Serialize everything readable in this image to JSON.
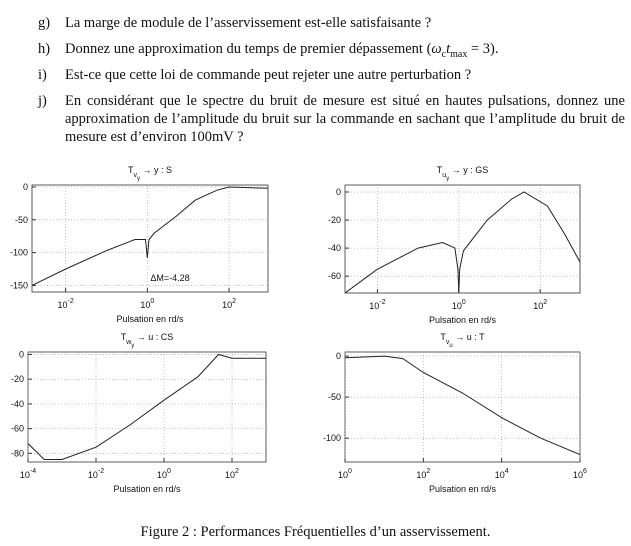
{
  "questions": [
    {
      "label": "g)",
      "text": "La marge de module de l’asservissement est-elle satisfaisante ?"
    },
    {
      "label": "h)",
      "text": "Donnez une approximation du temps de premier dépassement (",
      "omega": "ω",
      "omega_sub": "c",
      "t": "t",
      "t_sub": "max",
      "after": " = 3)."
    },
    {
      "label": "i)",
      "text": "Est-ce que cette loi de commande peut rejeter une autre perturbation ?"
    },
    {
      "label": "j)",
      "text": "En considérant que le spectre du bruit de mesure est situé en hautes pulsations, donnez une approximation de l’amplitude du bruit sur la commande en sachant que l’amplitude du bruit de mesure est d’environ 100mV ?"
    }
  ],
  "caption": "Figure 2 : Performances Fréquentielles d’un asservissement.",
  "chart_data": [
    {
      "type": "line",
      "title": {
        "base": "T",
        "sub": "v",
        "subsub": "y",
        "tail": " → y : S"
      },
      "x_label": "Pulsation en rd/s",
      "log_x": true,
      "grid": true,
      "color": "#222222",
      "x": [
        0.0015,
        0.01,
        0.1,
        0.5,
        0.9,
        1,
        1.1,
        1.5,
        5,
        15,
        50,
        100,
        900
      ],
      "values": [
        -150,
        -125,
        -97,
        -80,
        -80,
        -108,
        -80,
        -70,
        -45,
        -20,
        -5,
        0,
        -2
      ],
      "xlim": [
        0.0015,
        900
      ],
      "ylim": [
        -160,
        3
      ],
      "xticks": [
        {
          "value": 0.01,
          "label": "10",
          "exp": "-2"
        },
        {
          "value": 1,
          "label": "10",
          "exp": "0"
        },
        {
          "value": 100,
          "label": "10",
          "exp": "2"
        }
      ],
      "yticks": [
        0,
        -50,
        -100,
        -150
      ],
      "annotation": "ΔM=-4.28"
    },
    {
      "type": "line",
      "title": {
        "base": "T",
        "sub": "u",
        "subsub": "y",
        "tail": " → y : GS"
      },
      "x_label": "Pulsation en rd/s",
      "log_x": true,
      "grid": true,
      "color": "#222222",
      "x": [
        0.0016,
        0.01,
        0.1,
        0.4,
        0.8,
        0.95,
        1,
        1.05,
        1.3,
        5,
        20,
        40,
        150,
        400,
        950
      ],
      "values": [
        -72,
        -55,
        -40,
        -36,
        -40,
        -55,
        -72,
        -55,
        -42,
        -20,
        -5,
        0,
        -10,
        -30,
        -50
      ],
      "xlim": [
        0.0016,
        950
      ],
      "ylim": [
        -72,
        5
      ],
      "xticks": [
        {
          "value": 0.01,
          "label": "10",
          "exp": "-2"
        },
        {
          "value": 1,
          "label": "10",
          "exp": "0"
        },
        {
          "value": 100,
          "label": "10",
          "exp": "2"
        }
      ],
      "yticks": [
        0,
        -20,
        -40,
        -60
      ]
    },
    {
      "type": "line",
      "title": {
        "base": "T",
        "sub": "w",
        "subsub": "y",
        "tail": " → u : CS"
      },
      "x_label": "Pulsation en rd/s",
      "log_x": true,
      "grid": true,
      "color": "#222222",
      "x": [
        0.0001,
        0.0003,
        0.001,
        0.01,
        0.1,
        1,
        10,
        40,
        100,
        1000
      ],
      "values": [
        -72,
        -85,
        -85,
        -75,
        -57,
        -37,
        -18,
        0,
        -3,
        -3
      ],
      "xlim": [
        0.0001,
        1000
      ],
      "ylim": [
        -87,
        2
      ],
      "xticks": [
        {
          "value": 0.0001,
          "label": "10",
          "exp": "-4"
        },
        {
          "value": 0.01,
          "label": "10",
          "exp": "-2"
        },
        {
          "value": 1,
          "label": "10",
          "exp": "0"
        },
        {
          "value": 100,
          "label": "10",
          "exp": "2"
        }
      ],
      "yticks": [
        0,
        -20,
        -40,
        -60,
        -80
      ]
    },
    {
      "type": "line",
      "title": {
        "base": "T",
        "sub": "v",
        "subsub": "u",
        "tail": " → u : T"
      },
      "x_label": "Pulsation en rd/s",
      "log_x": true,
      "grid": true,
      "color": "#222222",
      "x": [
        1,
        10,
        30,
        100,
        1000,
        10000,
        100000,
        1000000
      ],
      "values": [
        -2,
        0,
        -3,
        -20,
        -45,
        -75,
        -100,
        -120
      ],
      "xlim": [
        1,
        1000000
      ],
      "ylim": [
        -129,
        5
      ],
      "xticks": [
        {
          "value": 1,
          "label": "10",
          "exp": "0"
        },
        {
          "value": 100,
          "label": "10",
          "exp": "2"
        },
        {
          "value": 10000,
          "label": "10",
          "exp": "4"
        },
        {
          "value": 1000000,
          "label": "10",
          "exp": "6"
        }
      ],
      "yticks": [
        0,
        -50,
        -100
      ]
    }
  ]
}
